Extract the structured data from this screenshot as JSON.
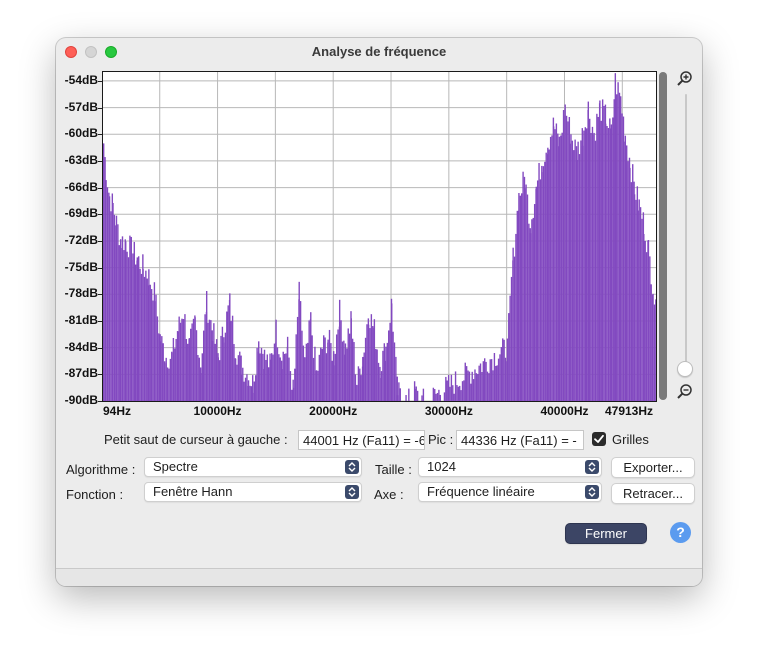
{
  "window": {
    "title": "Analyse de fréquence"
  },
  "chart_data": {
    "type": "area",
    "xlim": [
      94,
      47913
    ],
    "ylim": [
      -90,
      -53
    ],
    "x_tick_labels": [
      "94Hz",
      "10000Hz",
      "20000Hz",
      "30000Hz",
      "40000Hz",
      "47913Hz"
    ],
    "x_tick_values": [
      94,
      10000,
      20000,
      30000,
      40000,
      47913
    ],
    "y_tick_labels": [
      "-54dB",
      "-57dB",
      "-60dB",
      "-63dB",
      "-66dB",
      "-69dB",
      "-72dB",
      "-75dB",
      "-78dB",
      "-81dB",
      "-84dB",
      "-87dB",
      "-90dB"
    ],
    "y_tick_values": [
      -54,
      -57,
      -60,
      -63,
      -66,
      -69,
      -72,
      -75,
      -78,
      -81,
      -84,
      -87,
      -90
    ],
    "grid": true,
    "color": "#8249c0",
    "x": [
      94,
      300,
      600,
      900,
      1200,
      1600,
      2000,
      2500,
      3000,
      3500,
      4000,
      4500,
      5000,
      5500,
      6000,
      6500,
      7000,
      7500,
      8000,
      8500,
      9000,
      9500,
      10000,
      10500,
      11000,
      11500,
      12000,
      12500,
      13000,
      13500,
      14000,
      14500,
      15000,
      15500,
      16000,
      16500,
      17000,
      17500,
      18000,
      18500,
      19000,
      19500,
      20000,
      20500,
      21000,
      21500,
      22000,
      22500,
      23000,
      23500,
      24000,
      24500,
      25000,
      25500,
      26000,
      26500,
      27000,
      27500,
      28000,
      35000,
      35500,
      36000,
      36500,
      37000,
      37500,
      38000,
      38500,
      39000,
      39500,
      40000,
      40500,
      41000,
      41500,
      42000,
      42500,
      43000,
      43500,
      44000,
      44336,
      44800,
      45200,
      45600,
      46000,
      46400,
      46800,
      47200,
      47600,
      47913
    ],
    "y": [
      -61,
      -64,
      -67,
      -68,
      -70,
      -72,
      -72,
      -73,
      -74,
      -75,
      -76,
      -78,
      -83,
      -85,
      -85,
      -82,
      -80,
      -84,
      -81,
      -86,
      -79,
      -82,
      -85,
      -82,
      -79,
      -84,
      -86,
      -87,
      -88,
      -83,
      -85,
      -86,
      -82,
      -85,
      -84,
      -89,
      -78,
      -86,
      -81,
      -87,
      -84,
      -83,
      -85,
      -80,
      -84,
      -81,
      -88,
      -85,
      -80,
      -82,
      -86,
      -84,
      -79,
      -89,
      -90,
      -90,
      -89,
      -90,
      -90,
      -84,
      -74,
      -67,
      -65,
      -70,
      -66,
      -63,
      -61,
      -59,
      -61,
      -57,
      -60,
      -62,
      -60,
      -57,
      -60,
      -57,
      -58,
      -60,
      -54,
      -56,
      -60,
      -63,
      -66,
      -68,
      -70,
      -73,
      -77,
      -81
    ]
  },
  "scroll": {
    "zoom_in_icon": "zoom-in-icon",
    "zoom_out_icon": "zoom-out-icon"
  },
  "controls": {
    "cursor_label": "Petit saut de curseur à gauche :",
    "cursor_value": "44001 Hz (Fa11) = -6",
    "peak_label": "Pic :",
    "peak_value": "44336 Hz (Fa11) = -",
    "grids_label": "Grilles",
    "grids_checked": true,
    "algorithm_label": "Algorithme :",
    "algorithm_value": "Spectre",
    "size_label": "Taille :",
    "size_value": "1024",
    "export_button": "Exporter...",
    "function_label": "Fonction :",
    "function_value": "Fenêtre Hann",
    "axis_label": "Axe :",
    "axis_value": "Fréquence linéaire",
    "replot_button": "Retracer...",
    "close_button": "Fermer",
    "help_button": "?"
  }
}
